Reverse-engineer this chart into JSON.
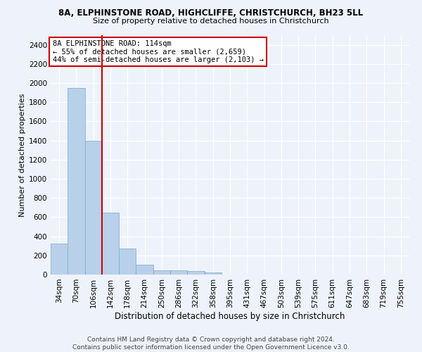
{
  "title1": "8A, ELPHINSTONE ROAD, HIGHCLIFFE, CHRISTCHURCH, BH23 5LL",
  "title2": "Size of property relative to detached houses in Christchurch",
  "xlabel": "Distribution of detached houses by size in Christchurch",
  "ylabel": "Number of detached properties",
  "footer1": "Contains HM Land Registry data © Crown copyright and database right 2024.",
  "footer2": "Contains public sector information licensed under the Open Government Licence v3.0.",
  "annotation_line1": "8A ELPHINSTONE ROAD: 114sqm",
  "annotation_line2": "← 55% of detached houses are smaller (2,659)",
  "annotation_line3": "44% of semi-detached houses are larger (2,103) →",
  "bar_color": "#b8d0ea",
  "bar_edge_color": "#7aaac8",
  "red_line_x": 2.5,
  "categories": [
    "34sqm",
    "70sqm",
    "106sqm",
    "142sqm",
    "178sqm",
    "214sqm",
    "250sqm",
    "286sqm",
    "322sqm",
    "358sqm",
    "395sqm",
    "431sqm",
    "467sqm",
    "503sqm",
    "539sqm",
    "575sqm",
    "611sqm",
    "647sqm",
    "683sqm",
    "719sqm",
    "755sqm"
  ],
  "values": [
    325,
    1950,
    1400,
    645,
    270,
    105,
    47,
    42,
    35,
    22,
    0,
    0,
    0,
    0,
    0,
    0,
    0,
    0,
    0,
    0,
    0
  ],
  "ylim": [
    0,
    2500
  ],
  "yticks": [
    0,
    200,
    400,
    600,
    800,
    1000,
    1200,
    1400,
    1600,
    1800,
    2000,
    2200,
    2400
  ],
  "bg_color": "#eef3fb",
  "grid_color": "#ffffff",
  "annotation_box_color": "#ffffff",
  "annotation_box_edge": "#cc0000",
  "red_line_color": "#cc0000",
  "title1_fontsize": 8.5,
  "title2_fontsize": 8,
  "ylabel_fontsize": 8,
  "xlabel_fontsize": 8.5,
  "tick_fontsize": 7.5,
  "ann_fontsize": 7.5,
  "footer_fontsize": 6.5
}
